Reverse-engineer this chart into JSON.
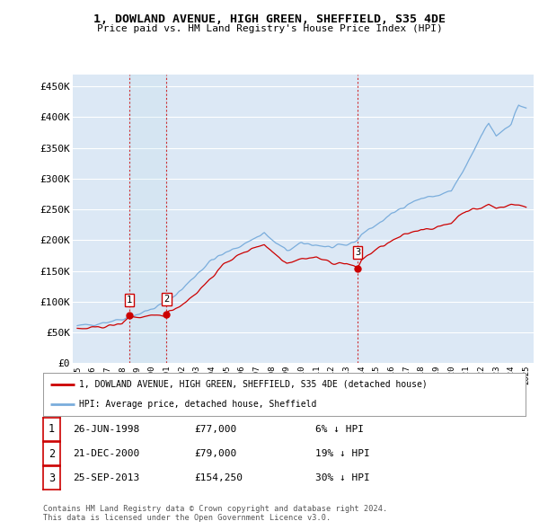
{
  "title": "1, DOWLAND AVENUE, HIGH GREEN, SHEFFIELD, S35 4DE",
  "subtitle": "Price paid vs. HM Land Registry's House Price Index (HPI)",
  "legend_label_red": "1, DOWLAND AVENUE, HIGH GREEN, SHEFFIELD, S35 4DE (detached house)",
  "legend_label_blue": "HPI: Average price, detached house, Sheffield",
  "footer": "Contains HM Land Registry data © Crown copyright and database right 2024.\nThis data is licensed under the Open Government Licence v3.0.",
  "table_rows": [
    {
      "num": "1",
      "date": "26-JUN-1998",
      "price": "£77,000",
      "pct": "6% ↓ HPI"
    },
    {
      "num": "2",
      "date": "21-DEC-2000",
      "price": "£79,000",
      "pct": "19% ↓ HPI"
    },
    {
      "num": "3",
      "date": "25-SEP-2013",
      "price": "£154,250",
      "pct": "30% ↓ HPI"
    }
  ],
  "sale_points": [
    {
      "year": 1998.49,
      "value": 77000,
      "label": "1"
    },
    {
      "year": 2000.97,
      "value": 79000,
      "label": "2"
    },
    {
      "year": 2013.73,
      "value": 154250,
      "label": "3"
    }
  ],
  "ylim": [
    0,
    470000
  ],
  "yticks": [
    0,
    50000,
    100000,
    150000,
    200000,
    250000,
    300000,
    350000,
    400000,
    450000
  ],
  "ytick_labels": [
    "£0",
    "£50K",
    "£100K",
    "£150K",
    "£200K",
    "£250K",
    "£300K",
    "£350K",
    "£400K",
    "£450K"
  ],
  "xtick_years": [
    1995,
    1996,
    1997,
    1998,
    1999,
    2000,
    2001,
    2002,
    2003,
    2004,
    2005,
    2006,
    2007,
    2008,
    2009,
    2010,
    2011,
    2012,
    2013,
    2014,
    2015,
    2016,
    2017,
    2018,
    2019,
    2020,
    2021,
    2022,
    2023,
    2024,
    2025
  ],
  "red_color": "#cc0000",
  "blue_color": "#7aaddc",
  "bg_color": "#ffffff",
  "plot_bg_color": "#dce8f5",
  "grid_color": "#ffffff",
  "vline_color": "#cc0000",
  "xlim_left": 1994.7,
  "xlim_right": 2025.5
}
